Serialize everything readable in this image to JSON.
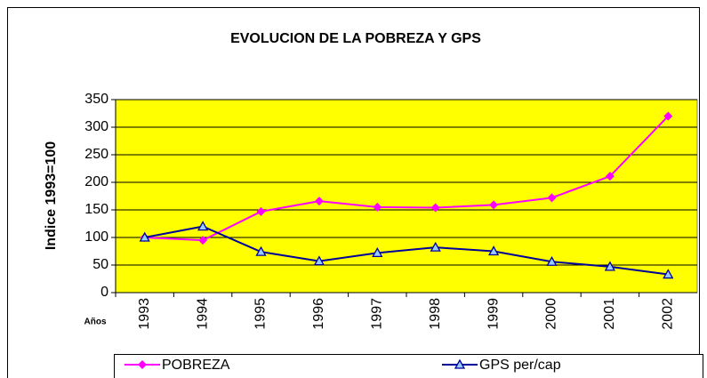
{
  "chart_data": {
    "type": "line",
    "title": "EVOLUCION DE LA POBREZA Y GPS",
    "y_label": "Indice 1993=100",
    "x_label": "Años",
    "categories": [
      "1993",
      "1994",
      "1995",
      "1996",
      "1997",
      "1998",
      "1999",
      "2000",
      "2001",
      "2002"
    ],
    "series": [
      {
        "name": "POBREZA",
        "color": "#ff00ff",
        "values": [
          100,
          95,
          147,
          166,
          155,
          154,
          159,
          172,
          211,
          320
        ]
      },
      {
        "name": "GPS per/cap",
        "color": "#000099",
        "values": [
          100,
          120,
          74,
          57,
          72,
          82,
          75,
          56,
          47,
          33
        ]
      }
    ],
    "ylim": [
      0,
      350
    ],
    "yticks": [
      0,
      50,
      100,
      150,
      200,
      250,
      300,
      350
    ],
    "grid": true,
    "legend": "bottom",
    "plot_background": "#ffff00"
  }
}
